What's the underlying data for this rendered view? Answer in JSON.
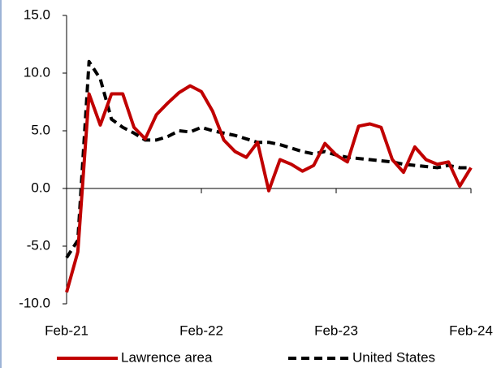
{
  "chart_data": {
    "type": "line",
    "categories": [
      "Feb-21",
      null,
      null,
      null,
      null,
      null,
      null,
      null,
      null,
      null,
      null,
      null,
      "Feb-22",
      null,
      null,
      null,
      null,
      null,
      null,
      null,
      null,
      null,
      null,
      null,
      "Feb-23",
      null,
      null,
      null,
      null,
      null,
      null,
      null,
      null,
      null,
      null,
      null,
      "Feb-24"
    ],
    "series": [
      {
        "name": "Lawrence area",
        "color": "#c00000",
        "dash": "solid",
        "values": [
          -9.0,
          -5.5,
          8.2,
          5.5,
          8.2,
          8.2,
          5.3,
          4.3,
          6.4,
          7.4,
          8.3,
          8.9,
          8.4,
          6.7,
          4.2,
          3.2,
          2.7,
          4.0,
          -0.2,
          2.5,
          2.1,
          1.5,
          2.0,
          3.9,
          2.9,
          2.3,
          5.4,
          5.6,
          5.3,
          2.5,
          1.4,
          3.6,
          2.5,
          2.1,
          2.3,
          0.2,
          1.8
        ]
      },
      {
        "name": "United States",
        "color": "#000000",
        "dash": "dashed",
        "values": [
          -6.0,
          -4.5,
          11.0,
          9.5,
          6.0,
          5.3,
          4.8,
          4.2,
          4.2,
          4.5,
          5.0,
          4.9,
          5.3,
          5.0,
          4.8,
          4.6,
          4.3,
          4.0,
          4.0,
          3.8,
          3.5,
          3.2,
          3.0,
          3.2,
          2.9,
          2.7,
          2.6,
          2.5,
          2.4,
          2.3,
          2.1,
          2.0,
          1.9,
          1.8,
          2.0,
          1.8,
          1.8
        ]
      }
    ],
    "ylim": [
      -10,
      15
    ],
    "yticks": [
      {
        "value": -10,
        "label": "-10.0"
      },
      {
        "value": -5,
        "label": "-5.0"
      },
      {
        "value": 0,
        "label": "0.0"
      },
      {
        "value": 5,
        "label": "5.0"
      },
      {
        "value": 10,
        "label": "10.0"
      },
      {
        "value": 15,
        "label": "15.0"
      }
    ],
    "grid": false,
    "legend": "bottom"
  }
}
